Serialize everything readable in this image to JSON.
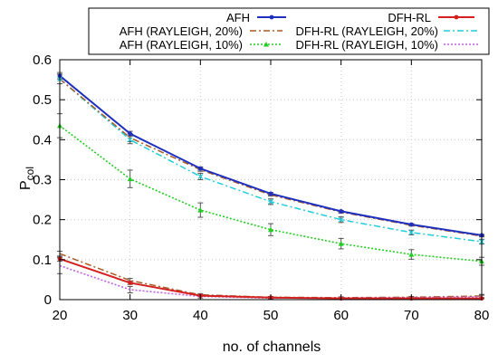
{
  "chart_data": {
    "type": "line",
    "xlabel": "no. of channels",
    "ylabel": "P",
    "ylabel_sub": "col",
    "xlim": [
      20,
      80
    ],
    "ylim": [
      0,
      0.6
    ],
    "x_ticks": [
      "20",
      "30",
      "40",
      "50",
      "60",
      "70",
      "80"
    ],
    "y_ticks": [
      "0",
      "0.1",
      "0.2",
      "0.3",
      "0.4",
      "0.5",
      "0.6"
    ],
    "grid": true,
    "legend_position": "top",
    "x": [
      20,
      30,
      40,
      50,
      60,
      70,
      80
    ],
    "series": [
      {
        "name": "AFH",
        "color": "#1f2fbf",
        "style": "solid",
        "marker": "dot",
        "values": [
          0.56,
          0.415,
          0.328,
          0.265,
          0.221,
          0.188,
          0.161
        ],
        "err": [
          0.008,
          0.006,
          0.004,
          0.003,
          0.002,
          0.002,
          0.002
        ]
      },
      {
        "name": "DFH-RL",
        "color": "#d42020",
        "style": "solid",
        "marker": "dot",
        "values": [
          0.102,
          0.042,
          0.01,
          0.005,
          0.003,
          0.003,
          0.003
        ],
        "err": [
          0.006,
          0.004,
          0.002,
          0.001,
          0.001,
          0.001,
          0.001
        ]
      },
      {
        "name": "AFH (RAYLEIGH, 20%)",
        "color": "#a85a22",
        "style": "dashdot",
        "marker": "none",
        "values": [
          0.552,
          0.405,
          0.325,
          0.262,
          0.219,
          0.186,
          0.159
        ],
        "err": [
          0.012,
          0.01,
          0.004,
          0.003,
          0.003,
          0.002,
          0.002
        ]
      },
      {
        "name": "DFH-RL (RAYLEIGH, 20%)",
        "color": "#22ccdd",
        "style": "dashdot",
        "marker": "x",
        "values": [
          0.552,
          0.4,
          0.308,
          0.245,
          0.2,
          0.168,
          0.145
        ],
        "err": [
          0.012,
          0.01,
          0.008,
          0.007,
          0.007,
          0.006,
          0.006
        ]
      },
      {
        "name": "AFH (RAYLEIGH, 10%)",
        "color": "#22cc22",
        "style": "dotted",
        "marker": "triangle",
        "values": [
          0.435,
          0.302,
          0.224,
          0.175,
          0.14,
          0.113,
          0.096
        ],
        "err": [
          0.03,
          0.022,
          0.018,
          0.015,
          0.013,
          0.012,
          0.01
        ]
      },
      {
        "name": "DFH-RL (RAYLEIGH, 10%)",
        "color": "#c060e0",
        "style": "dotted",
        "marker": "none",
        "values": [
          0.085,
          0.025,
          0.008,
          0.004,
          0.004,
          0.005,
          0.007
        ],
        "err": [
          0.02,
          0.008,
          0.004,
          0.002,
          0.002,
          0.002,
          0.004
        ]
      },
      {
        "name": "",
        "color": "#a85a22",
        "style": "dashdot",
        "marker": "none",
        "values": [
          0.115,
          0.048,
          0.012,
          0.006,
          0.005,
          0.006,
          0.009
        ],
        "err": [
          0.006,
          0.005,
          0.003,
          0.002,
          0.002,
          0.002,
          0.004
        ]
      }
    ],
    "legend": [
      {
        "label": "AFH",
        "series": 0
      },
      {
        "label": "DFH-RL",
        "series": 1
      },
      {
        "label": "AFH (RAYLEIGH, 20%)",
        "series": 2
      },
      {
        "label": "DFH-RL (RAYLEIGH, 20%)",
        "series": 3
      },
      {
        "label": "AFH (RAYLEIGH, 10%)",
        "series": 4
      },
      {
        "label": "DFH-RL (RAYLEIGH, 10%)",
        "series": 5
      }
    ]
  }
}
